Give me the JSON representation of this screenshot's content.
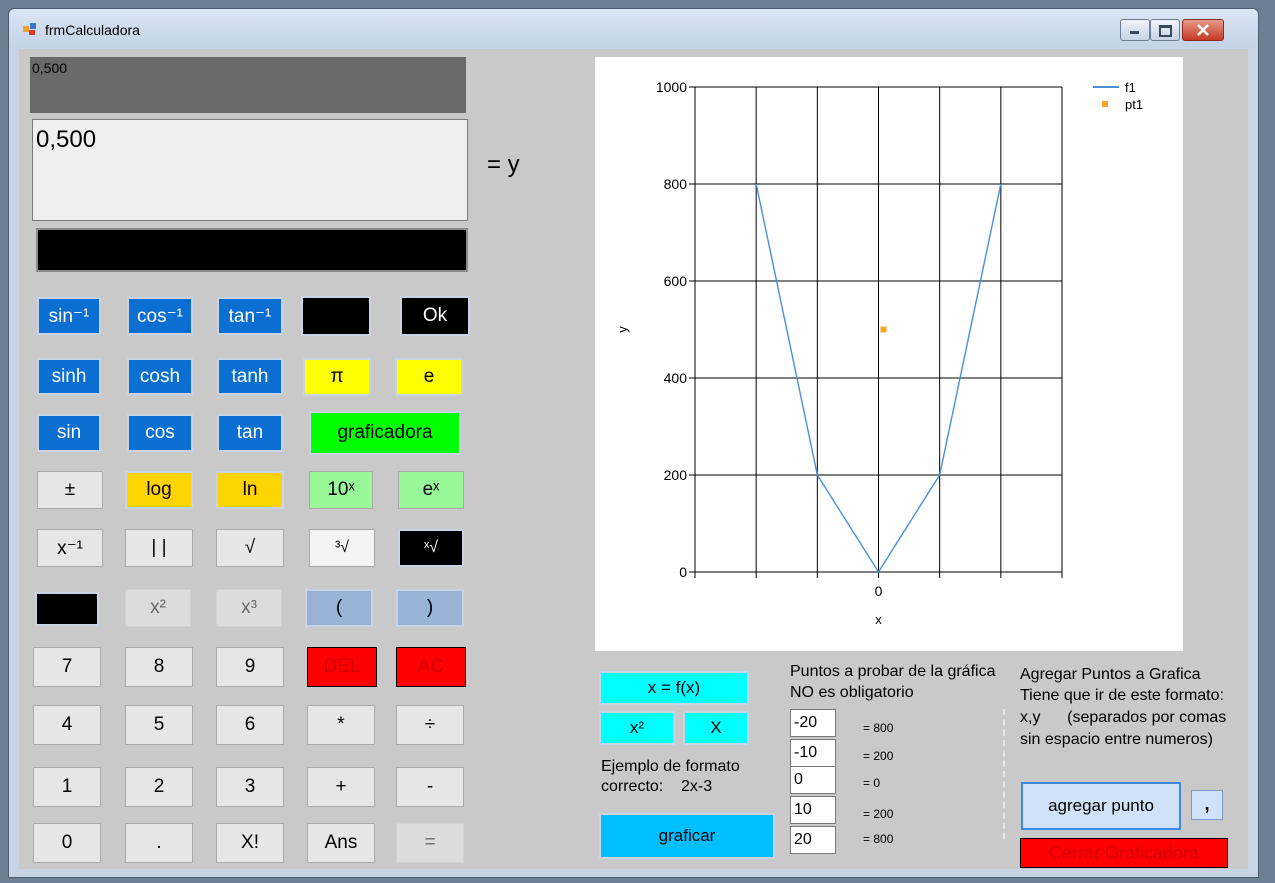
{
  "window": {
    "title": "frmCalculadora"
  },
  "display": {
    "history": "0,500",
    "main": "0,500",
    "y_label": "= y"
  },
  "buttons": {
    "asin": "sin⁻¹",
    "acos": "cos⁻¹",
    "atan": "tan⁻¹",
    "ok": "Ok",
    "sinh": "sinh",
    "cosh": "cosh",
    "tanh": "tanh",
    "pi": "π",
    "e": "e",
    "sin": "sin",
    "cos": "cos",
    "tan": "tan",
    "graficadora": "graficadora",
    "sign": "±",
    "log": "log",
    "ln": "ln",
    "pow10": "10ˣ",
    "exp": "eˣ",
    "inv": "x⁻¹",
    "abs": "|  |",
    "sqrt": "√",
    "cbrt": "³√",
    "nroot": "ˣ√",
    "sq": "x²",
    "cube": "x³",
    "lparen": "(",
    "rparen": ")",
    "n7": "7",
    "n8": "8",
    "n9": "9",
    "del": "DEL",
    "ac": "AC",
    "n4": "4",
    "n5": "5",
    "n6": "6",
    "mul": "*",
    "div": "÷",
    "n1": "1",
    "n2": "2",
    "n3": "3",
    "add": "+",
    "sub": "-",
    "n0": "0",
    "dot": ".",
    "fact": "X!",
    "ans": "Ans",
    "eq": "="
  },
  "grapher": {
    "xfx": "x = f(x)",
    "x2": "x²",
    "x": "X",
    "example_line1": "Ejemplo de formato",
    "example_line2": "correcto:    2x-3",
    "graficar": "graficar",
    "test_title1": "Puntos a probar de la gráfica",
    "test_title2": "NO es obligatorio",
    "test_points": [
      {
        "input": "-20",
        "result": "= 800"
      },
      {
        "input": "-10",
        "result": "= 200"
      },
      {
        "input": "0",
        "result": "= 0"
      },
      {
        "input": "10",
        "result": "= 200"
      },
      {
        "input": "20",
        "result": "= 800"
      }
    ],
    "add_title": "Agregar Puntos a Grafica",
    "add_line1": "Tiene que ir de este formato:",
    "add_line2": "x,y      (separados por comas",
    "add_line3": "sin espacio entre numeros)",
    "add_point": "agregar punto",
    "comma": ",",
    "close": "Cerrar Graficadora"
  },
  "chart_data": {
    "type": "line",
    "x": [
      -20,
      -10,
      0,
      10,
      20
    ],
    "series": [
      {
        "name": "f1",
        "kind": "line",
        "x": [
          -20,
          -10,
          0,
          10,
          20
        ],
        "values": [
          800,
          200,
          0,
          200,
          800
        ],
        "color": "#4a90d9"
      },
      {
        "name": "pt1",
        "kind": "point",
        "x": [
          0
        ],
        "values": [
          500
        ],
        "color": "#f5a623"
      }
    ],
    "xlabel": "x",
    "ylabel": "y",
    "xlim": [
      -30,
      30
    ],
    "ylim": [
      0,
      1000
    ],
    "yticks": [
      0,
      200,
      400,
      600,
      800,
      1000
    ],
    "xtick_labels": [
      "0"
    ],
    "grid": true,
    "legend": "top-right"
  }
}
